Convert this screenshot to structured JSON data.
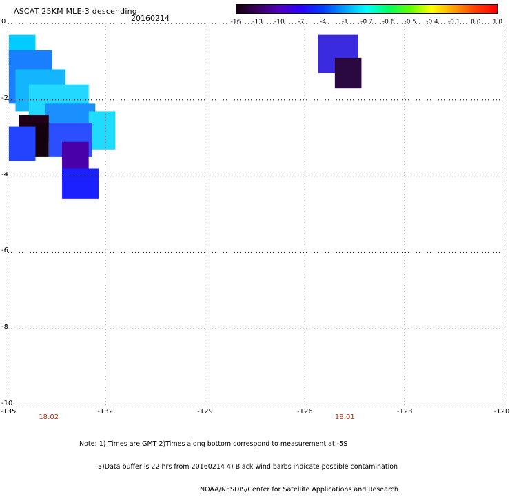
{
  "header": {
    "title": "ASCAT 25KM MLE-3 descending",
    "date": "20160214"
  },
  "colorbar": {
    "tick_labels": [
      "-16",
      "-13",
      "-10",
      "-7",
      "-4",
      "-1",
      "-0.7",
      "-0.6",
      "-0.5",
      "-0.4",
      "-0.1",
      "0.0",
      "1.0"
    ],
    "colors": [
      "#140010",
      "#3a0060",
      "#5000c0",
      "#2a00ff",
      "#0040ff",
      "#00a0ff",
      "#00ffff",
      "#00ff60",
      "#60ff00",
      "#ffff00",
      "#ffa000",
      "#ff4000",
      "#ff0000"
    ]
  },
  "map": {
    "x_ticks": [
      "-135",
      "-132",
      "-129",
      "-126",
      "-123",
      "-120"
    ],
    "y_ticks": [
      "0",
      "-2",
      "-4",
      "-6",
      "-8",
      "-10"
    ],
    "lon_range": [
      -135,
      -120
    ],
    "lat_range": [
      -10,
      0
    ],
    "grid": true,
    "times": [
      {
        "label": "18:02",
        "lon": -133.7
      },
      {
        "label": "18:01",
        "lon": -124.8
      }
    ],
    "cells": [
      {
        "lon": -134.9,
        "lat": -0.3,
        "w": 0.8,
        "h": 0.8,
        "color": "#00ccff"
      },
      {
        "lon": -134.9,
        "lat": -0.7,
        "w": 1.3,
        "h": 1.4,
        "color": "#1a7fff"
      },
      {
        "lon": -134.7,
        "lat": -1.2,
        "w": 1.5,
        "h": 1.1,
        "color": "#13b5ff"
      },
      {
        "lon": -134.3,
        "lat": -1.6,
        "w": 1.8,
        "h": 0.9,
        "color": "#22d8ff"
      },
      {
        "lon": -133.8,
        "lat": -2.1,
        "w": 1.5,
        "h": 0.9,
        "color": "#1a90ff"
      },
      {
        "lon": -132.5,
        "lat": -2.3,
        "w": 0.8,
        "h": 1.0,
        "color": "#1fdcff"
      },
      {
        "lon": -134.6,
        "lat": -2.4,
        "w": 0.9,
        "h": 0.7,
        "color": "#200018"
      },
      {
        "lon": -134.2,
        "lat": -2.6,
        "w": 0.5,
        "h": 0.9,
        "color": "#150010"
      },
      {
        "lon": -133.7,
        "lat": -2.6,
        "w": 1.3,
        "h": 0.9,
        "color": "#2b4fff"
      },
      {
        "lon": -134.9,
        "lat": -2.7,
        "w": 0.8,
        "h": 0.9,
        "color": "#2244ff"
      },
      {
        "lon": -133.3,
        "lat": -3.1,
        "w": 0.8,
        "h": 1.0,
        "color": "#4a00a8"
      },
      {
        "lon": -133.3,
        "lat": -3.8,
        "w": 1.1,
        "h": 0.8,
        "color": "#1a20ff"
      },
      {
        "lon": -125.6,
        "lat": -0.3,
        "w": 1.2,
        "h": 1.0,
        "color": "#3a2ae0"
      },
      {
        "lon": -125.1,
        "lat": -0.9,
        "w": 0.8,
        "h": 0.8,
        "color": "#2a0840"
      }
    ]
  },
  "notes": {
    "line1": "Note: 1) Times are GMT 2)Times along bottom correspond to measurement at -5S",
    "line2": "3)Data buffer is 22 hrs from 20160214 4) Black wind barbs indicate possible contamination",
    "line3": "NOAA/NESDIS/Center for Satellite Applications and Research"
  }
}
